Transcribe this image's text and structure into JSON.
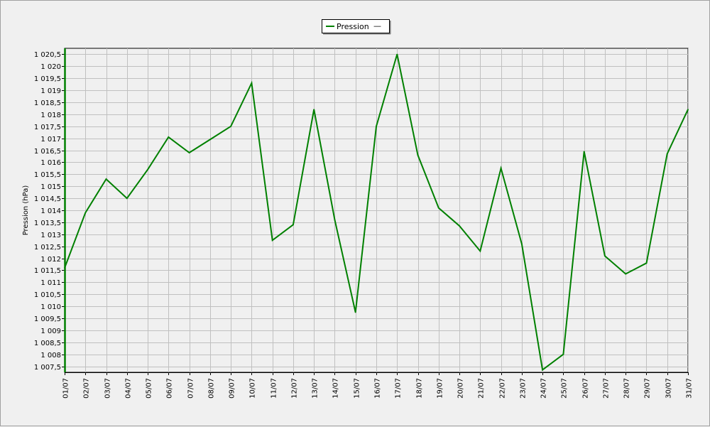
{
  "chart_data": {
    "type": "line",
    "title": "",
    "xlabel": "",
    "ylabel": "Pression (hPa)",
    "categories": [
      "01/07",
      "02/07",
      "03/07",
      "04/07",
      "05/07",
      "06/07",
      "07/07",
      "08/07",
      "09/07",
      "10/07",
      "11/07",
      "12/07",
      "13/07",
      "14/07",
      "15/07",
      "16/07",
      "17/07",
      "18/07",
      "19/07",
      "20/07",
      "21/07",
      "22/07",
      "23/07",
      "24/07",
      "25/07",
      "26/07",
      "27/07",
      "28/07",
      "29/07",
      "30/07",
      "31/07"
    ],
    "series": [
      {
        "name": "Pression",
        "color": "#008000",
        "values": [
          1011.6,
          1013.9,
          1015.3,
          1014.5,
          1015.7,
          1017.05,
          1016.4,
          1016.95,
          1017.5,
          1019.3,
          1012.75,
          1013.4,
          1018.2,
          1013.6,
          1009.75,
          1017.5,
          1020.5,
          1016.3,
          1014.1,
          1013.35,
          1012.3,
          1015.75,
          1012.6,
          1007.35,
          1008.0,
          1016.45,
          1012.1,
          1011.35,
          1011.8,
          1016.35,
          1018.2
        ]
      }
    ],
    "ylim": [
      1007.25,
      1020.75
    ],
    "yticks": [
      1007.5,
      1008,
      1008.5,
      1009,
      1009.5,
      1010,
      1010.5,
      1011,
      1011.5,
      1012,
      1012.5,
      1013,
      1013.5,
      1014,
      1014.5,
      1015,
      1015.5,
      1016,
      1016.5,
      1017,
      1017.5,
      1018,
      1018.5,
      1019,
      1019.5,
      1020,
      1020.5
    ],
    "ytick_labels": [
      "1 007,5",
      "1 008",
      "1 008,5",
      "1 009",
      "1 009,5",
      "1 010",
      "1 010,5",
      "1 011",
      "1 011,5",
      "1 012",
      "1 012,5",
      "1 013",
      "1 013,5",
      "1 014",
      "1 014,5",
      "1 015",
      "1 015,5",
      "1 016",
      "1 016,5",
      "1 017",
      "1 017,5",
      "1 018",
      "1 018,5",
      "1 019",
      "1 019,5",
      "1 020",
      "1 020,5"
    ],
    "grid": true,
    "legend": {
      "position": "top-center",
      "entries": [
        {
          "label": "Pression",
          "color": "#008000"
        }
      ],
      "trailing_mark": "—"
    }
  }
}
